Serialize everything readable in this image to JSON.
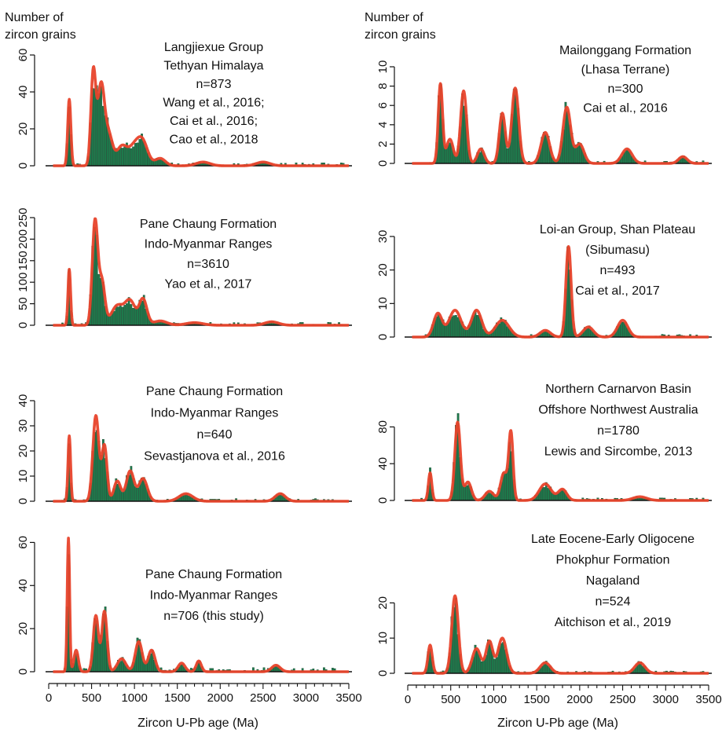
{
  "figure": {
    "left_header": [
      "Number of",
      "zircon grains"
    ],
    "right_header": [
      "Number of",
      "zircon grains"
    ],
    "left_xlabel": "Zircon U-Pb age (Ma)",
    "right_xlabel": "Zircon U-Pb age (Ma)",
    "bar_color": "#1e7a4c",
    "curve_color": "#e8432b",
    "axis_color": "#111111"
  },
  "chart_data": [
    {
      "type": "bar",
      "panel": "left-1",
      "annotation": [
        "Langjiexue Group",
        "Tethyan Himalaya",
        "n=873",
        "Wang et al., 2016;",
        "Cai et al., 2016;",
        "Cao et al., 2018"
      ],
      "xlim": [
        0,
        3500
      ],
      "ylim": [
        0,
        60
      ],
      "yticks": [
        0,
        20,
        40,
        60
      ],
      "peaks": [
        [
          240,
          36,
          18
        ],
        [
          520,
          50,
          28
        ],
        [
          610,
          43,
          40
        ],
        [
          700,
          16,
          45
        ],
        [
          850,
          10,
          60
        ],
        [
          1000,
          10,
          70
        ],
        [
          1100,
          11,
          60
        ],
        [
          1300,
          4,
          60
        ],
        [
          1800,
          2,
          80
        ],
        [
          2500,
          2,
          80
        ]
      ]
    },
    {
      "type": "bar",
      "panel": "left-2",
      "annotation": [
        "Pane Chaung Formation",
        "Indo-Myanmar Ranges",
        "n=3610",
        "Yao et al., 2017"
      ],
      "xlim": [
        0,
        3500
      ],
      "ylim": [
        0,
        250
      ],
      "yticks": [
        0,
        50,
        100,
        150,
        200,
        250
      ],
      "peaks": [
        [
          240,
          130,
          15
        ],
        [
          540,
          240,
          32
        ],
        [
          620,
          100,
          35
        ],
        [
          800,
          45,
          70
        ],
        [
          950,
          55,
          60
        ],
        [
          1100,
          60,
          45
        ],
        [
          1300,
          10,
          80
        ],
        [
          1700,
          6,
          100
        ],
        [
          2600,
          8,
          80
        ]
      ]
    },
    {
      "type": "bar",
      "panel": "left-3",
      "annotation": [
        "Pane Chaung Formation",
        "Indo-Myanmar Ranges",
        "n=640",
        "Sevastjanova et al., 2016"
      ],
      "xlim": [
        0,
        3500
      ],
      "ylim": [
        0,
        40
      ],
      "yticks": [
        0,
        10,
        20,
        30,
        40
      ],
      "peaks": [
        [
          240,
          26,
          15
        ],
        [
          550,
          34,
          35
        ],
        [
          650,
          22,
          30
        ],
        [
          800,
          8,
          40
        ],
        [
          950,
          12,
          45
        ],
        [
          1100,
          9,
          50
        ],
        [
          1600,
          3,
          80
        ],
        [
          2700,
          3,
          60
        ]
      ]
    },
    {
      "type": "bar",
      "panel": "left-4",
      "annotation": [
        "Pane Chaung Formation",
        "Indo-Myanmar Ranges",
        "n=706 (this study)"
      ],
      "xlim": [
        0,
        3500
      ],
      "ylim": [
        0,
        70
      ],
      "yticks": [
        0,
        20,
        40,
        60
      ],
      "xticks": [
        0,
        500,
        1000,
        1500,
        2000,
        2500,
        3000,
        3500
      ],
      "peaks": [
        [
          230,
          62,
          14
        ],
        [
          320,
          10,
          25
        ],
        [
          550,
          26,
          30
        ],
        [
          650,
          28,
          30
        ],
        [
          850,
          6,
          50
        ],
        [
          1050,
          14,
          40
        ],
        [
          1200,
          10,
          40
        ],
        [
          1550,
          4,
          40
        ],
        [
          1750,
          5,
          30
        ],
        [
          2650,
          3,
          50
        ]
      ]
    },
    {
      "type": "bar",
      "panel": "right-1",
      "annotation": [
        "Mailonggang Formation",
        "(Lhasa Terrane)",
        "n=300",
        "Cai et al., 2016"
      ],
      "xlim": [
        0,
        3500
      ],
      "ylim": [
        0,
        10
      ],
      "yticks": [
        0,
        2,
        4,
        6,
        8,
        10
      ],
      "peaks": [
        [
          380,
          8.2,
          25
        ],
        [
          490,
          2.5,
          40
        ],
        [
          650,
          7.5,
          35
        ],
        [
          850,
          1.5,
          40
        ],
        [
          1100,
          5.2,
          35
        ],
        [
          1250,
          7.8,
          40
        ],
        [
          1600,
          3.2,
          50
        ],
        [
          1850,
          5.8,
          45
        ],
        [
          2000,
          2.0,
          50
        ],
        [
          2550,
          1.5,
          60
        ],
        [
          3200,
          0.7,
          50
        ]
      ]
    },
    {
      "type": "bar",
      "panel": "right-2",
      "annotation": [
        "Loi-an Group, Shan Plateau",
        "(Sibumasu)",
        "n=493",
        "Cai et al., 2017"
      ],
      "xlim": [
        0,
        3500
      ],
      "ylim": [
        0,
        30
      ],
      "yticks": [
        0,
        10,
        20,
        30
      ],
      "peaks": [
        [
          350,
          7,
          50
        ],
        [
          550,
          8,
          70
        ],
        [
          800,
          8,
          60
        ],
        [
          1100,
          5,
          80
        ],
        [
          1600,
          2,
          60
        ],
        [
          1870,
          27,
          30
        ],
        [
          2100,
          3,
          60
        ],
        [
          2500,
          5,
          60
        ]
      ]
    },
    {
      "type": "bar",
      "panel": "right-3",
      "annotation": [
        "Northern Carnarvon Basin",
        "Offshore Northwest Australia",
        "n=1780",
        "Lewis and Sircombe, 2013"
      ],
      "xlim": [
        0,
        3500
      ],
      "ylim": [
        0,
        100
      ],
      "yticks": [
        0,
        40,
        80
      ],
      "peaks": [
        [
          260,
          30,
          20
        ],
        [
          580,
          85,
          32
        ],
        [
          700,
          20,
          40
        ],
        [
          950,
          10,
          50
        ],
        [
          1120,
          30,
          40
        ],
        [
          1200,
          72,
          25
        ],
        [
          1600,
          18,
          70
        ],
        [
          1800,
          12,
          50
        ],
        [
          2700,
          4,
          80
        ]
      ]
    },
    {
      "type": "bar",
      "panel": "right-4",
      "annotation": [
        "Late Eocene-Early Oligocene",
        "Phokphur Formation",
        "Nagaland",
        "n=524",
        "Aitchison et al., 2019"
      ],
      "xlim": [
        0,
        3500
      ],
      "ylim": [
        0,
        25
      ],
      "yticks": [
        0,
        10,
        20
      ],
      "xticks": [
        0,
        500,
        1000,
        1500,
        2000,
        2500,
        3000,
        3500
      ],
      "peaks": [
        [
          260,
          8,
          25
        ],
        [
          550,
          22,
          38
        ],
        [
          800,
          7,
          50
        ],
        [
          950,
          9,
          40
        ],
        [
          1100,
          10,
          50
        ],
        [
          1600,
          3,
          60
        ],
        [
          2700,
          3,
          60
        ]
      ]
    }
  ]
}
